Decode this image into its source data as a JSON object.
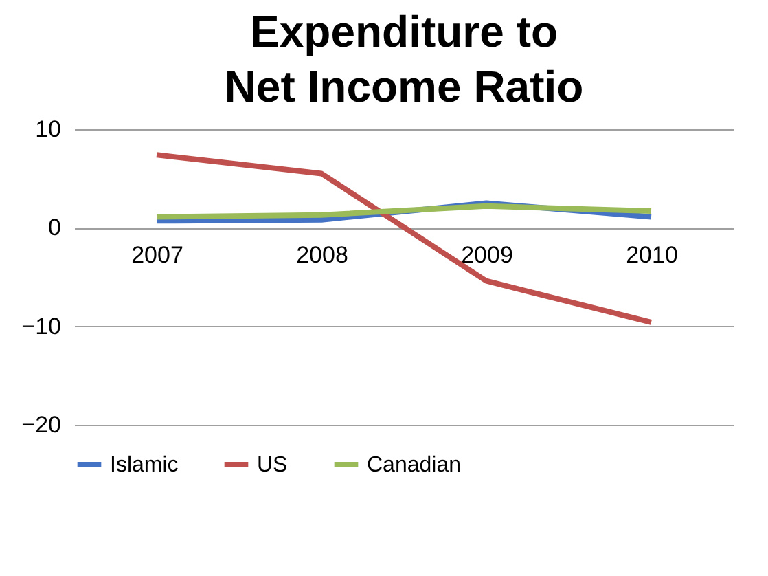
{
  "chart_data": {
    "type": "line",
    "title": "Expenditure to Net Income Ratio",
    "categories": [
      "2007",
      "2008",
      "2009",
      "2010"
    ],
    "series": [
      {
        "name": "Islamic",
        "color": "#4472c4",
        "values": [
          0.7,
          0.8,
          2.5,
          1.1
        ]
      },
      {
        "name": "US",
        "color": "#c0504d",
        "values": [
          7.4,
          5.5,
          -5.4,
          -9.6
        ]
      },
      {
        "name": "Canadian",
        "color": "#9bbb59",
        "values": [
          1.1,
          1.3,
          2.2,
          1.7
        ]
      }
    ],
    "ylim": [
      -20,
      10
    ],
    "yticks": [
      -20,
      -10,
      0,
      10
    ],
    "grid": "y",
    "legend": "bottom",
    "marker": "none",
    "line_style": "solid"
  }
}
